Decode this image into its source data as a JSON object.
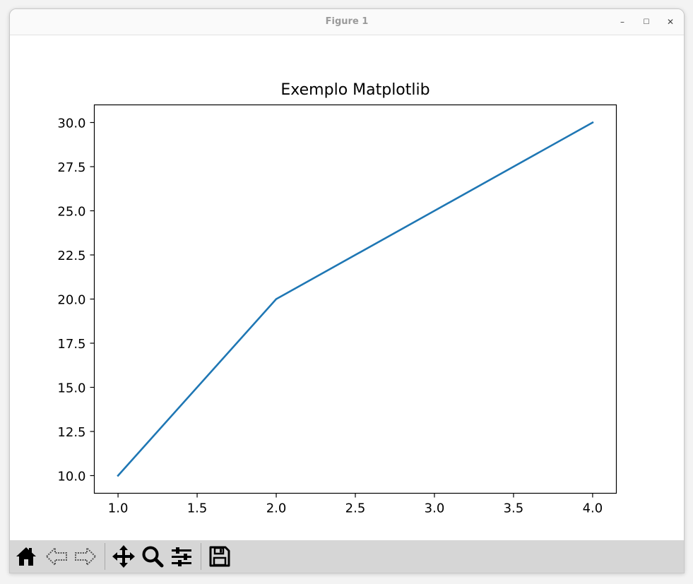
{
  "window": {
    "title": "Figure 1",
    "controls": {
      "minimize": "–",
      "maximize": "☐",
      "close": "✕"
    }
  },
  "toolbar": {
    "buttons": [
      {
        "name": "home",
        "icon": "home-icon"
      },
      {
        "name": "back",
        "icon": "back-arrow-icon"
      },
      {
        "name": "forward",
        "icon": "forward-arrow-icon"
      },
      {
        "name": "pan",
        "icon": "move-icon"
      },
      {
        "name": "zoom",
        "icon": "zoom-icon"
      },
      {
        "name": "configure",
        "icon": "sliders-icon"
      },
      {
        "name": "save",
        "icon": "save-icon"
      }
    ]
  },
  "chart_data": {
    "type": "line",
    "title": "Exemplo Matplotlib",
    "xlabel": "",
    "ylabel": "",
    "x": [
      1,
      2,
      3,
      4
    ],
    "series": [
      {
        "values": [
          10,
          20,
          25,
          30
        ],
        "color": "#1f77b4"
      }
    ],
    "xlim": [
      0.85,
      4.15
    ],
    "ylim": [
      9,
      31
    ],
    "xticks": [
      "1.0",
      "1.5",
      "2.0",
      "2.5",
      "3.0",
      "3.5",
      "4.0"
    ],
    "yticks": [
      "10.0",
      "12.5",
      "15.0",
      "17.5",
      "20.0",
      "22.5",
      "25.0",
      "27.5",
      "30.0"
    ],
    "grid": false
  }
}
